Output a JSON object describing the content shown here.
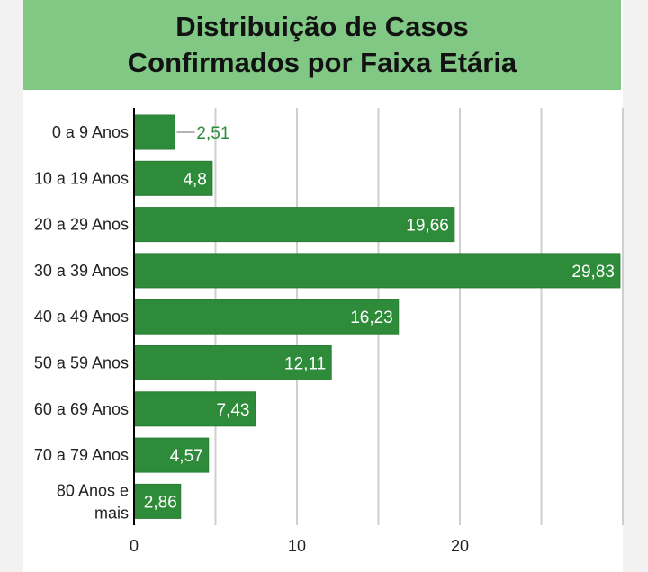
{
  "title": {
    "line1": "Distribuição de Casos",
    "line2": "Confirmados por Faixa Etária"
  },
  "colors": {
    "bar": "#2e8b3a",
    "bar_edge": "#2a7d35",
    "title_band": "#80c883",
    "grid": "#cfcfcf",
    "axis": "#000000",
    "label_inside": "#ffffff",
    "label_outside": "#2e8b3a"
  },
  "chart_data": {
    "type": "bar",
    "orientation": "horizontal",
    "title": "Distribuição de Casos Confirmados por Faixa Etária",
    "categories": [
      "0 a 9 Anos",
      "10 a 19 Anos",
      "20 a 29 Anos",
      "30 a 39 Anos",
      "40 a 49 Anos",
      "50 a 59 Anos",
      "60 a 69 Anos",
      "70 a 79 Anos",
      "80 Anos e mais"
    ],
    "values": [
      2.51,
      4.8,
      19.66,
      29.83,
      16.23,
      12.11,
      7.43,
      4.57,
      2.86
    ],
    "data_labels": [
      "2,51",
      "4,8",
      "19,66",
      "29,83",
      "16,23",
      "12,11",
      "7,43",
      "4,57",
      "2,86"
    ],
    "xlim": [
      0,
      30
    ],
    "x_ticks": [
      0,
      10,
      20
    ],
    "x_tick_labels": [
      "0",
      "10",
      "20"
    ],
    "grid_ticks": [
      5,
      10,
      15,
      20,
      25,
      30
    ],
    "grid": true,
    "xlabel": "",
    "ylabel": ""
  }
}
